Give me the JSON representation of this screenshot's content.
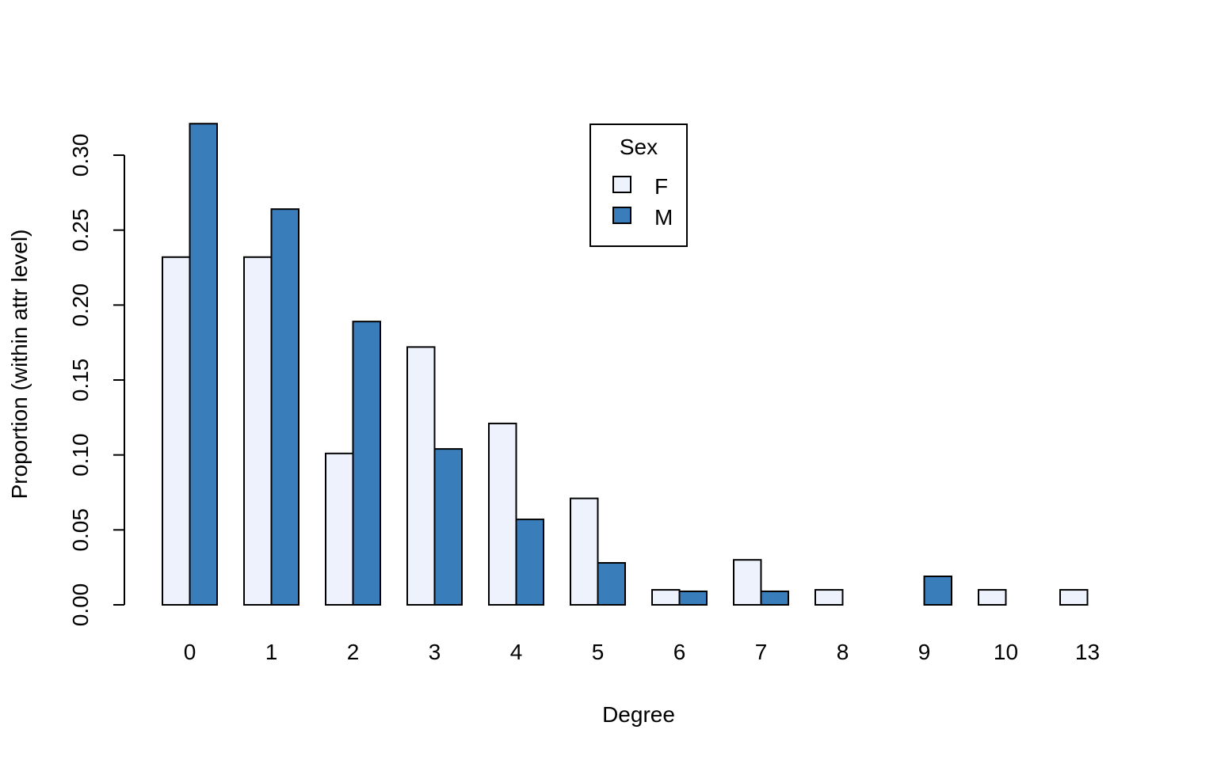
{
  "chart_data": {
    "type": "bar",
    "title": "",
    "xlabel": "Degree",
    "ylabel": "Proportion (within attr level)",
    "categories": [
      "0",
      "1",
      "2",
      "3",
      "4",
      "5",
      "6",
      "7",
      "8",
      "9",
      "10",
      "13"
    ],
    "series": [
      {
        "name": "F",
        "color": "#eef2fd",
        "values": [
          0.232,
          0.232,
          0.101,
          0.172,
          0.121,
          0.071,
          0.01,
          0.03,
          0.01,
          0.0,
          0.01,
          0.01
        ]
      },
      {
        "name": "M",
        "color": "#3a7dbb",
        "values": [
          0.321,
          0.264,
          0.189,
          0.104,
          0.057,
          0.028,
          0.009,
          0.009,
          0.0,
          0.019,
          0.0,
          0.0
        ]
      }
    ],
    "ylim": [
      0,
      0.3
    ],
    "yticks": [
      "0.00",
      "0.05",
      "0.10",
      "0.15",
      "0.20",
      "0.25",
      "0.30"
    ],
    "grid": false,
    "legend": {
      "title": "Sex",
      "placement": "top-center",
      "entries": [
        "F",
        "M"
      ]
    }
  }
}
